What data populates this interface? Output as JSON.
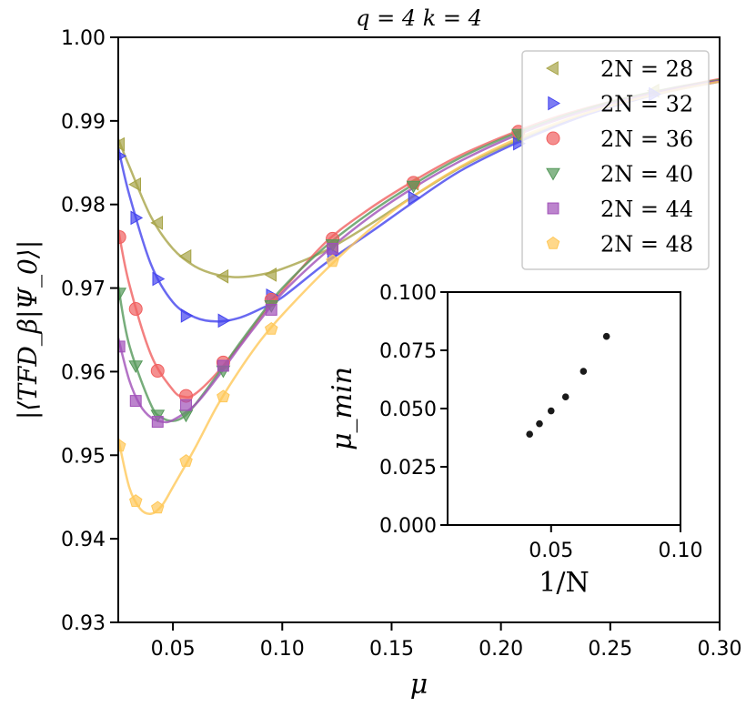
{
  "chart_data": [
    {
      "type": "scatter",
      "title": "q = 4      k = 4",
      "xlabel": "μ",
      "ylabel": "|⟨TFD_β|Ψ_0⟩|",
      "xlim": [
        0.025,
        0.3
      ],
      "ylim": [
        0.93,
        1.0
      ],
      "x_ticks": [
        "0.05",
        "0.10",
        "0.15",
        "0.20",
        "0.25",
        "0.30"
      ],
      "y_ticks": [
        "0.93",
        "0.94",
        "0.95",
        "0.96",
        "0.97",
        "0.98",
        "0.99",
        "1.00"
      ],
      "grid": false,
      "legend_position": "top-right",
      "series": [
        {
          "name": "2N = 28",
          "marker": "triangle-left",
          "color": "#a7a447",
          "points": [
            [
              0.0255,
              0.9872
            ],
            [
              0.033,
              0.9824
            ],
            [
              0.043,
              0.9778
            ],
            [
              0.056,
              0.9738
            ],
            [
              0.073,
              0.9714
            ],
            [
              0.095,
              0.9716
            ],
            [
              0.123,
              0.975
            ],
            [
              0.16,
              0.9825
            ],
            [
              0.208,
              0.988
            ],
            [
              0.27,
              0.9936
            ]
          ],
          "curve": [
            [
              0.025,
              0.9878
            ],
            [
              0.03,
              0.9846
            ],
            [
              0.04,
              0.9785
            ],
            [
              0.05,
              0.9747
            ],
            [
              0.06,
              0.9726
            ],
            [
              0.07,
              0.9716
            ],
            [
              0.08,
              0.9713
            ],
            [
              0.09,
              0.9716
            ],
            [
              0.1,
              0.9723
            ],
            [
              0.12,
              0.9745
            ],
            [
              0.14,
              0.9776
            ],
            [
              0.16,
              0.981
            ],
            [
              0.18,
              0.9842
            ],
            [
              0.2,
              0.9868
            ],
            [
              0.22,
              0.989
            ],
            [
              0.24,
              0.991
            ],
            [
              0.26,
              0.9925
            ],
            [
              0.28,
              0.9938
            ],
            [
              0.3,
              0.9948
            ]
          ]
        },
        {
          "name": "2N = 32",
          "marker": "triangle-right",
          "color": "#4444ee",
          "points": [
            [
              0.0255,
              0.9858
            ],
            [
              0.033,
              0.9784
            ],
            [
              0.043,
              0.9711
            ],
            [
              0.056,
              0.9667
            ],
            [
              0.073,
              0.9661
            ],
            [
              0.095,
              0.9691
            ],
            [
              0.123,
              0.9741
            ],
            [
              0.16,
              0.9808
            ],
            [
              0.208,
              0.9873
            ],
            [
              0.27,
              0.9932
            ]
          ],
          "curve": [
            [
              0.025,
              0.9868
            ],
            [
              0.03,
              0.9812
            ],
            [
              0.04,
              0.9728
            ],
            [
              0.05,
              0.9683
            ],
            [
              0.06,
              0.9665
            ],
            [
              0.07,
              0.966
            ],
            [
              0.08,
              0.9664
            ],
            [
              0.09,
              0.9675
            ],
            [
              0.1,
              0.9689
            ],
            [
              0.12,
              0.973
            ],
            [
              0.14,
              0.9766
            ],
            [
              0.16,
              0.9803
            ],
            [
              0.18,
              0.9838
            ],
            [
              0.2,
              0.9865
            ],
            [
              0.22,
              0.9888
            ],
            [
              0.24,
              0.9908
            ],
            [
              0.26,
              0.9924
            ],
            [
              0.28,
              0.9937
            ],
            [
              0.3,
              0.9947
            ]
          ]
        },
        {
          "name": "2N = 36",
          "marker": "circle",
          "color": "#f06060",
          "points": [
            [
              0.0255,
              0.9761
            ],
            [
              0.033,
              0.9675
            ],
            [
              0.043,
              0.9601
            ],
            [
              0.056,
              0.9571
            ],
            [
              0.073,
              0.9611
            ],
            [
              0.095,
              0.9686
            ],
            [
              0.123,
              0.9759
            ],
            [
              0.16,
              0.9826
            ],
            [
              0.208,
              0.9887
            ]
          ],
          "curve": [
            [
              0.025,
              0.977
            ],
            [
              0.03,
              0.9705
            ],
            [
              0.04,
              0.962
            ],
            [
              0.05,
              0.9578
            ],
            [
              0.055,
              0.957
            ],
            [
              0.06,
              0.9573
            ],
            [
              0.07,
              0.9598
            ],
            [
              0.08,
              0.963
            ],
            [
              0.09,
              0.9665
            ],
            [
              0.1,
              0.9697
            ],
            [
              0.12,
              0.9755
            ],
            [
              0.14,
              0.9795
            ],
            [
              0.16,
              0.9828
            ],
            [
              0.18,
              0.9857
            ],
            [
              0.2,
              0.988
            ],
            [
              0.22,
              0.99
            ],
            [
              0.24,
              0.9916
            ],
            [
              0.26,
              0.9929
            ],
            [
              0.28,
              0.994
            ],
            [
              0.3,
              0.995
            ]
          ]
        },
        {
          "name": "2N = 40",
          "marker": "triangle-down",
          "color": "#55995a",
          "points": [
            [
              0.0255,
              0.9694
            ],
            [
              0.033,
              0.9607
            ],
            [
              0.043,
              0.9548
            ],
            [
              0.056,
              0.9548
            ],
            [
              0.073,
              0.9601
            ],
            [
              0.095,
              0.9679
            ],
            [
              0.123,
              0.9752
            ],
            [
              0.16,
              0.9822
            ],
            [
              0.208,
              0.9884
            ]
          ],
          "curve": [
            [
              0.025,
              0.9702
            ],
            [
              0.03,
              0.9632
            ],
            [
              0.04,
              0.956
            ],
            [
              0.045,
              0.9545
            ],
            [
              0.05,
              0.9541
            ],
            [
              0.055,
              0.9546
            ],
            [
              0.06,
              0.956
            ],
            [
              0.07,
              0.9595
            ],
            [
              0.08,
              0.9632
            ],
            [
              0.09,
              0.9667
            ],
            [
              0.1,
              0.97
            ],
            [
              0.12,
              0.975
            ],
            [
              0.14,
              0.979
            ],
            [
              0.16,
              0.9824
            ],
            [
              0.18,
              0.9854
            ],
            [
              0.2,
              0.9878
            ],
            [
              0.22,
              0.9898
            ],
            [
              0.24,
              0.9915
            ],
            [
              0.26,
              0.9929
            ],
            [
              0.28,
              0.994
            ],
            [
              0.3,
              0.9949
            ]
          ]
        },
        {
          "name": "2N = 44",
          "marker": "square",
          "color": "#a050b8",
          "points": [
            [
              0.0255,
              0.963
            ],
            [
              0.033,
              0.9565
            ],
            [
              0.043,
              0.954
            ],
            [
              0.056,
              0.956
            ],
            [
              0.073,
              0.9607
            ],
            [
              0.095,
              0.9674
            ],
            [
              0.123,
              0.9747
            ]
          ],
          "curve": [
            [
              0.025,
              0.964
            ],
            [
              0.03,
              0.959
            ],
            [
              0.035,
              0.956
            ],
            [
              0.04,
              0.9545
            ],
            [
              0.045,
              0.954
            ],
            [
              0.05,
              0.9542
            ],
            [
              0.06,
              0.956
            ],
            [
              0.07,
              0.9592
            ],
            [
              0.08,
              0.9628
            ],
            [
              0.09,
              0.9662
            ],
            [
              0.1,
              0.9694
            ],
            [
              0.12,
              0.9743
            ],
            [
              0.14,
              0.9785
            ],
            [
              0.16,
              0.982
            ],
            [
              0.18,
              0.985
            ],
            [
              0.2,
              0.9875
            ],
            [
              0.22,
              0.9896
            ],
            [
              0.24,
              0.9913
            ],
            [
              0.26,
              0.9927
            ],
            [
              0.28,
              0.9939
            ],
            [
              0.3,
              0.9948
            ]
          ]
        },
        {
          "name": "2N = 48",
          "marker": "pentagon",
          "color": "#ffc859",
          "points": [
            [
              0.0255,
              0.9511
            ],
            [
              0.033,
              0.9445
            ],
            [
              0.043,
              0.9437
            ],
            [
              0.056,
              0.9493
            ],
            [
              0.073,
              0.957
            ],
            [
              0.095,
              0.9651
            ],
            [
              0.123,
              0.9732
            ]
          ],
          "curve": [
            [
              0.025,
              0.952
            ],
            [
              0.03,
              0.9462
            ],
            [
              0.035,
              0.9436
            ],
            [
              0.04,
              0.943
            ],
            [
              0.045,
              0.944
            ],
            [
              0.05,
              0.9462
            ],
            [
              0.06,
              0.9508
            ],
            [
              0.07,
              0.9558
            ],
            [
              0.08,
              0.96
            ],
            [
              0.09,
              0.9637
            ],
            [
              0.1,
              0.9668
            ],
            [
              0.12,
              0.9722
            ],
            [
              0.14,
              0.977
            ],
            [
              0.16,
              0.981
            ],
            [
              0.18,
              0.9843
            ],
            [
              0.2,
              0.987
            ],
            [
              0.22,
              0.9892
            ],
            [
              0.24,
              0.991
            ],
            [
              0.26,
              0.9925
            ],
            [
              0.28,
              0.9937
            ],
            [
              0.3,
              0.9947
            ]
          ]
        }
      ]
    },
    {
      "type": "scatter",
      "title": "",
      "xlabel": "1/N",
      "ylabel": "μ_min",
      "xlim": [
        0.01,
        0.1
      ],
      "ylim": [
        0.0,
        0.1
      ],
      "x_ticks": [
        "0.05",
        "0.10"
      ],
      "y_ticks": [
        "0.000",
        "0.025",
        "0.050",
        "0.075",
        "0.100"
      ],
      "points": [
        [
          0.0417,
          0.039
        ],
        [
          0.0455,
          0.0435
        ],
        [
          0.05,
          0.049
        ],
        [
          0.0556,
          0.055
        ],
        [
          0.0625,
          0.066
        ],
        [
          0.0714,
          0.081
        ]
      ]
    }
  ]
}
